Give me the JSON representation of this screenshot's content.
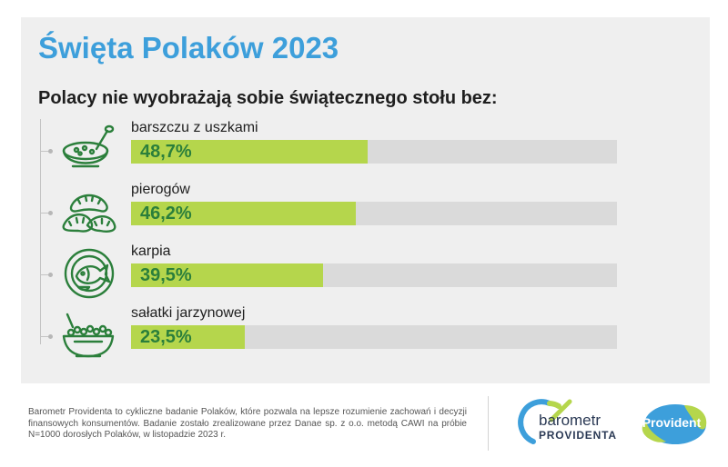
{
  "header": {
    "title": "Święta Polaków 2023",
    "subtitle": "Polacy nie wyobrażają sobie świątecznego stołu bez:"
  },
  "chart_data": {
    "type": "bar",
    "categories": [
      "barszczu z uszkami",
      "pierogów",
      "karpia",
      "sałatki jarzynowej"
    ],
    "values": [
      48.7,
      46.2,
      39.5,
      23.5
    ],
    "value_labels": [
      "48,7%",
      "46,2%",
      "39,5%",
      "23,5%"
    ],
    "icons": [
      "soup-bowl-icon",
      "pierogi-icon",
      "carp-plate-icon",
      "salad-bowl-icon"
    ],
    "xlim": [
      0,
      100
    ],
    "orientation": "horizontal",
    "colors": {
      "bar": "#b5d64c",
      "track": "#dadada",
      "value_text": "#2b7f3b"
    }
  },
  "footer": {
    "note": "Barometr Providenta to cykliczne badanie Polaków, które pozwala na lepsze rozumienie zachowań i decyzji finansowych konsumentów. Badanie zostało zrealizowane przez Danae sp. z o.o. metodą CAWI na próbie N=1000 dorosłych Polaków, w listopadzie 2023 r."
  },
  "logos": {
    "barometr_line1": "barometr",
    "barometr_line2": "PROVIDENTA",
    "provident": "Provident"
  },
  "colors": {
    "title": "#3d9fdb",
    "icon_stroke": "#2b7f3b",
    "panel_bg": "#efefef"
  }
}
